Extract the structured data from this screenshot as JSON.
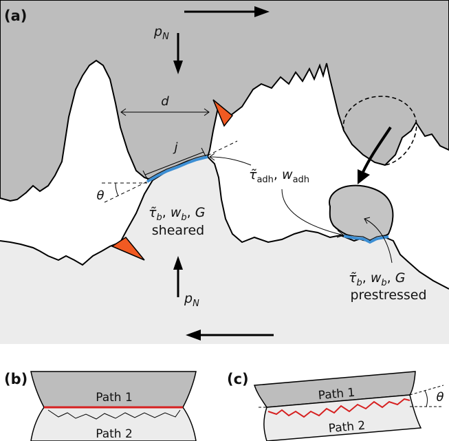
{
  "panel_a": {
    "label": "(a)",
    "pressure_top": {
      "main": "p",
      "sub": "N"
    },
    "pressure_bottom": {
      "main": "p",
      "sub": "N"
    },
    "distance_d": "d",
    "junction_j": "j",
    "angle_theta": "θ",
    "adhesion": {
      "tau": "τ̃",
      "tau_sub": "adh",
      "sep": ", ",
      "w": "w",
      "w_sub": "adh"
    },
    "sheared": {
      "tau": "τ̃",
      "tau_sub": "b",
      "sep1": ", ",
      "w": "w",
      "w_sub": "b",
      "sep2": ", ",
      "g": "G",
      "caption": "sheared"
    },
    "prestressed": {
      "tau": "τ̃",
      "tau_sub": "b",
      "sep1": ", ",
      "w": "w",
      "w_sub": "b",
      "sep2": ", ",
      "g": "G",
      "caption": "prestressed"
    }
  },
  "panel_b": {
    "label": "(b)",
    "path1": "Path 1",
    "path2": "Path 2"
  },
  "panel_c": {
    "label": "(c)",
    "path1": "Path 1",
    "path2": "Path 2",
    "angle": "θ"
  },
  "colors": {
    "top_body": "#bdbdbd",
    "bottom_body": "#ececec",
    "debris": "#c4c4c4",
    "wedge": "#f15a22",
    "adhesive_contact": "#3d8fd4",
    "fracture_path": "#d62020"
  }
}
